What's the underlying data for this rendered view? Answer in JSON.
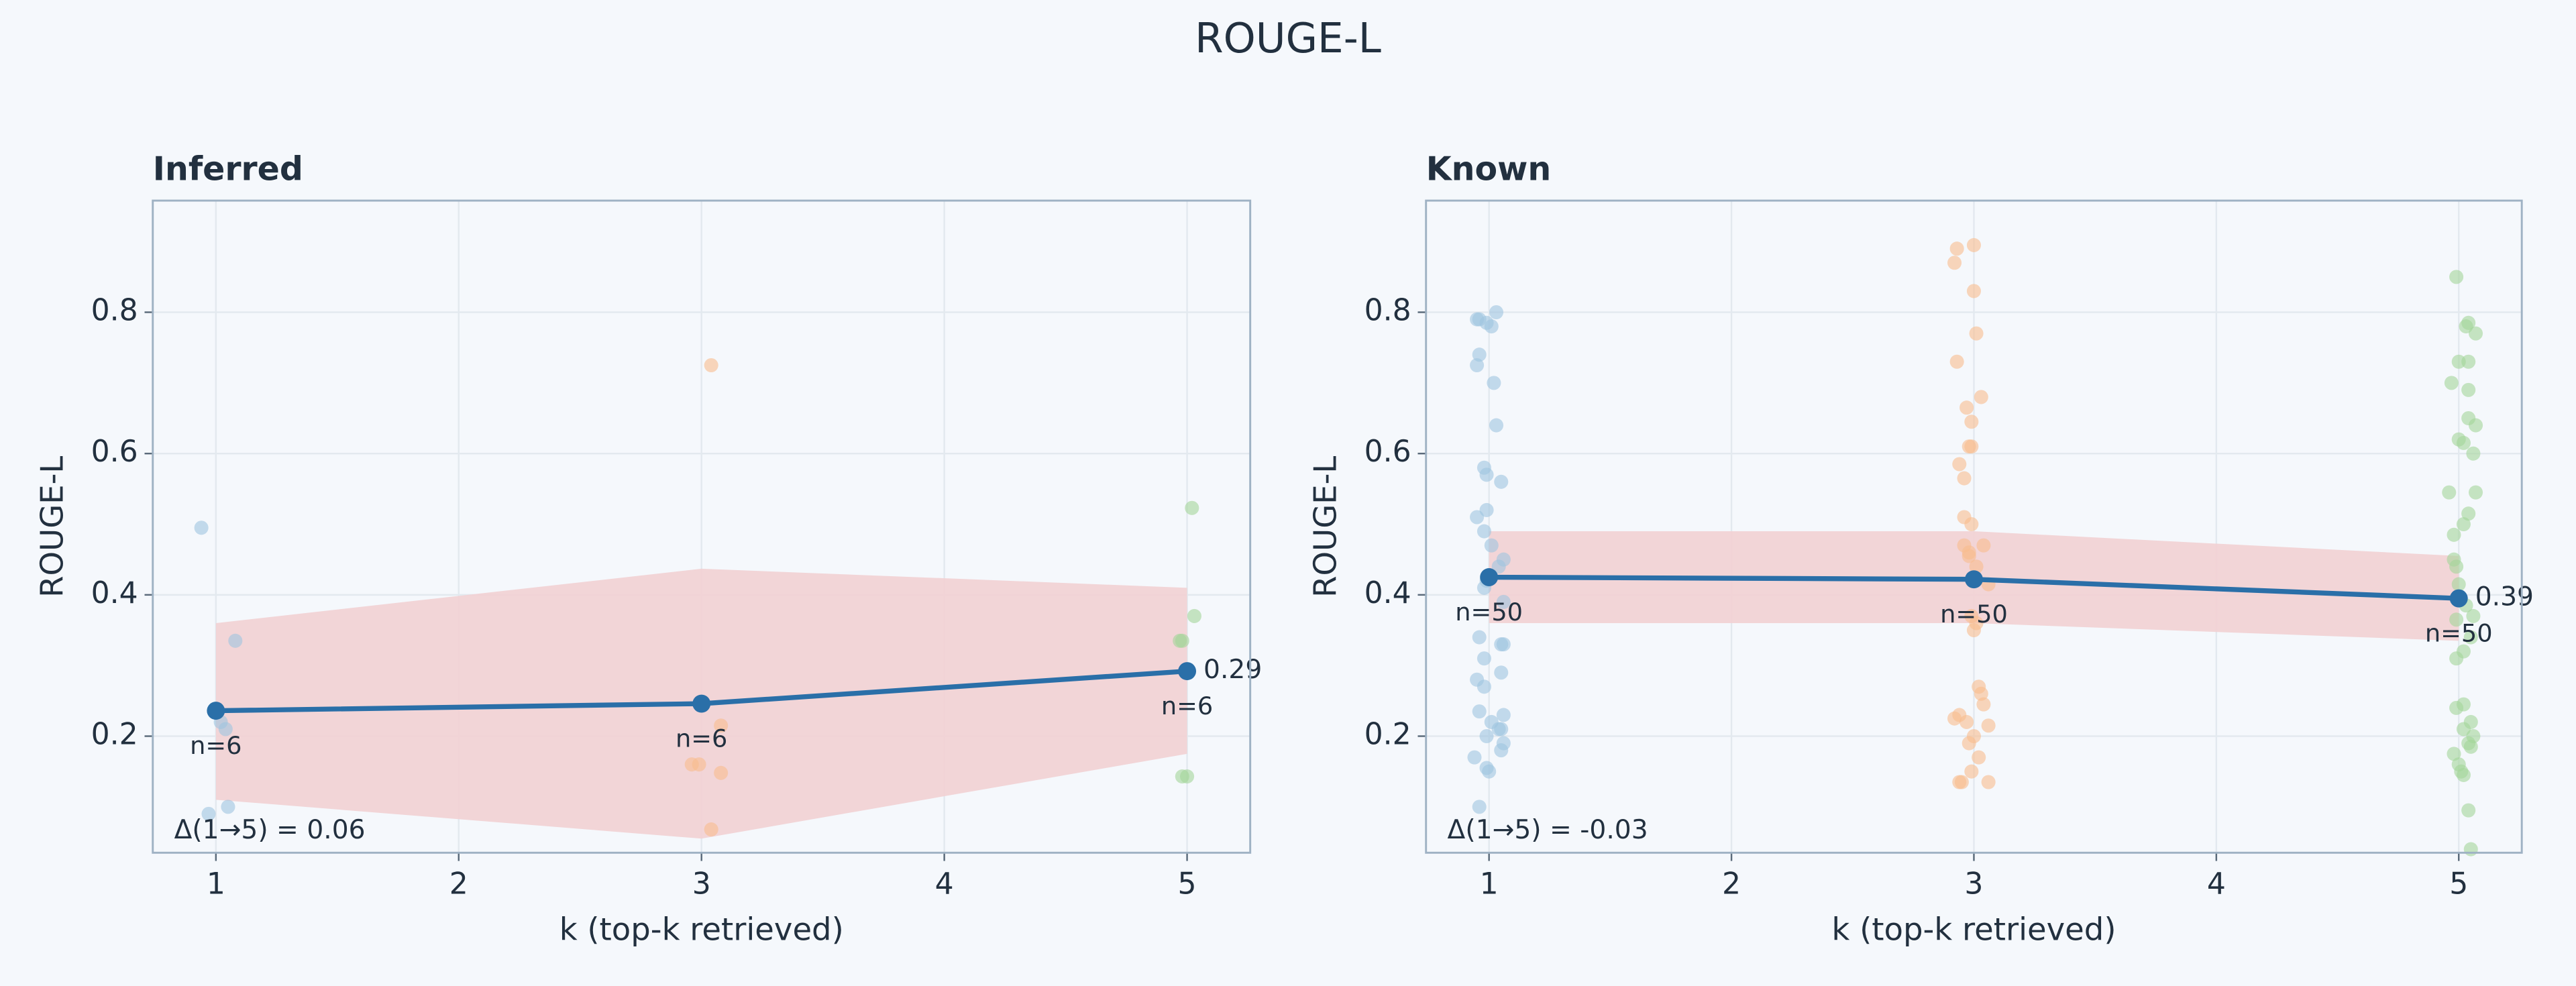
{
  "title": "ROUGE-L",
  "chart_data": [
    {
      "type": "line",
      "title": "Inferred",
      "xlabel": "k (top-k retrieved)",
      "ylabel": "ROUGE-L",
      "xlim": [
        0.74,
        5.26
      ],
      "ylim": [
        0.035,
        0.958
      ],
      "xticks": [
        1,
        2,
        3,
        4,
        5
      ],
      "yticks": [
        0.2,
        0.4,
        0.6,
        0.8
      ],
      "grid": true,
      "mean": {
        "color": "#2a6fa8",
        "x": [
          1,
          3,
          5
        ],
        "values": [
          0.236,
          0.246,
          0.292
        ],
        "n_labels": [
          "n=6",
          "n=6",
          "n=6"
        ],
        "end_label": "0.29"
      },
      "band": {
        "color": "#f2d0d3",
        "lower": [
          0.11,
          0.055,
          0.175
        ],
        "upper": [
          0.36,
          0.437,
          0.41
        ]
      },
      "annotation": "Δ(1→5) = 0.06",
      "points": [
        {
          "color": "#9fc4e0",
          "x": [
            0.94,
            1.08,
            1.02,
            1.04,
            1.05,
            0.97
          ],
          "values": [
            0.495,
            0.335,
            0.22,
            0.21,
            0.1,
            0.09
          ]
        },
        {
          "color": "#f8bd8d",
          "x": [
            3.04,
            3.08,
            3.08,
            2.96,
            2.99,
            3.04
          ],
          "values": [
            0.725,
            0.215,
            0.148,
            0.16,
            0.16,
            0.068
          ]
        },
        {
          "color": "#a3d69a",
          "x": [
            5.02,
            5.03,
            4.97,
            4.98,
            4.98,
            5.0
          ],
          "values": [
            0.523,
            0.37,
            0.335,
            0.335,
            0.143,
            0.143
          ]
        }
      ]
    },
    {
      "type": "line",
      "title": "Known",
      "xlabel": "k (top-k retrieved)",
      "ylabel": "ROUGE-L",
      "xlim": [
        0.74,
        5.26
      ],
      "ylim": [
        0.035,
        0.958
      ],
      "xticks": [
        1,
        2,
        3,
        4,
        5
      ],
      "yticks": [
        0.2,
        0.4,
        0.6,
        0.8
      ],
      "grid": true,
      "mean": {
        "color": "#2a6fa8",
        "x": [
          1,
          3,
          5
        ],
        "values": [
          0.425,
          0.422,
          0.395
        ],
        "n_labels": [
          "n=50",
          "n=50",
          "n=50"
        ],
        "end_label": "0.39"
      },
      "band": {
        "color": "#f2d0d3",
        "lower": [
          0.36,
          0.36,
          0.335
        ],
        "upper": [
          0.49,
          0.49,
          0.455
        ]
      },
      "annotation": "Δ(1→5) = -0.03",
      "points": [
        {
          "color": "#9fc4e0",
          "x": [
            0.95,
            0.96,
            1.03,
            0.99,
            1.01,
            0.96,
            0.95,
            1.02,
            1.03,
            0.98,
            0.99,
            1.05,
            0.99,
            0.95,
            0.98,
            1.01,
            1.06,
            1.04,
            0.99,
            0.98,
            1.06,
            0.96,
            1.05,
            1.06,
            0.98,
            1.05,
            0.95,
            0.98,
            0.96,
            1.06,
            1.01,
            1.04,
            1.05,
            0.99,
            1.06,
            1.05,
            0.94,
            0.99,
            1.0,
            0.96
          ],
          "values": [
            0.79,
            0.79,
            0.8,
            0.785,
            0.78,
            0.74,
            0.725,
            0.7,
            0.64,
            0.58,
            0.57,
            0.56,
            0.52,
            0.51,
            0.49,
            0.47,
            0.45,
            0.44,
            0.42,
            0.41,
            0.39,
            0.34,
            0.33,
            0.33,
            0.31,
            0.29,
            0.28,
            0.27,
            0.235,
            0.23,
            0.22,
            0.21,
            0.21,
            0.2,
            0.19,
            0.18,
            0.17,
            0.155,
            0.15,
            0.1
          ]
        },
        {
          "color": "#f8bd8d",
          "x": [
            3.0,
            2.93,
            2.92,
            3.0,
            3.01,
            2.93,
            3.03,
            2.97,
            2.99,
            2.99,
            2.98,
            2.94,
            2.96,
            2.96,
            2.99,
            2.96,
            3.04,
            2.98,
            2.98,
            3.01,
            3.06,
            2.99,
            3.01,
            3.0,
            3.02,
            3.03,
            3.04,
            2.94,
            2.92,
            2.97,
            3.06,
            3.0,
            2.98,
            3.02,
            2.99,
            2.95,
            2.94,
            3.06
          ],
          "values": [
            0.895,
            0.89,
            0.87,
            0.83,
            0.77,
            0.73,
            0.68,
            0.665,
            0.645,
            0.61,
            0.61,
            0.585,
            0.565,
            0.51,
            0.5,
            0.47,
            0.47,
            0.46,
            0.455,
            0.44,
            0.415,
            0.37,
            0.36,
            0.35,
            0.27,
            0.26,
            0.245,
            0.23,
            0.225,
            0.22,
            0.215,
            0.2,
            0.19,
            0.17,
            0.15,
            0.135,
            0.135,
            0.135
          ]
        },
        {
          "color": "#a3d69a",
          "x": [
            4.99,
            5.04,
            5.03,
            5.07,
            5.0,
            5.04,
            4.97,
            5.04,
            5.04,
            5.07,
            5.0,
            5.02,
            5.06,
            4.96,
            5.07,
            5.04,
            5.02,
            4.98,
            4.98,
            4.99,
            5.0,
            5.03,
            5.06,
            4.99,
            5.05,
            5.02,
            4.99,
            4.99,
            5.02,
            5.05,
            5.02,
            5.06,
            5.04,
            5.05,
            4.98,
            5.0,
            5.01,
            5.02,
            5.04,
            5.05
          ],
          "values": [
            0.85,
            0.785,
            0.78,
            0.77,
            0.73,
            0.73,
            0.7,
            0.69,
            0.65,
            0.64,
            0.62,
            0.615,
            0.6,
            0.545,
            0.545,
            0.515,
            0.5,
            0.485,
            0.45,
            0.44,
            0.415,
            0.385,
            0.37,
            0.365,
            0.34,
            0.32,
            0.31,
            0.24,
            0.245,
            0.22,
            0.21,
            0.2,
            0.19,
            0.185,
            0.175,
            0.16,
            0.15,
            0.145,
            0.095,
            0.04
          ]
        }
      ]
    }
  ]
}
